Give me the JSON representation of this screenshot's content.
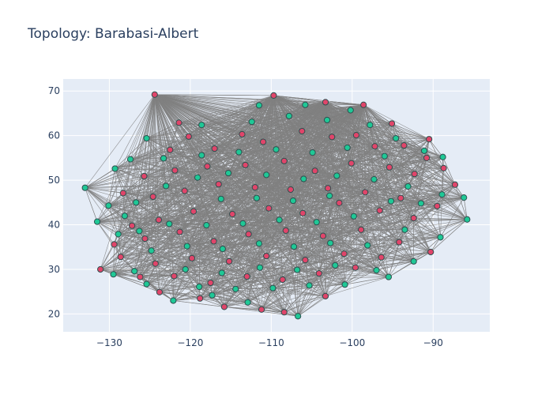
{
  "chart_data": {
    "type": "scatter",
    "title": "Topology: Barabasi-Albert",
    "xlabel": "",
    "ylabel": "",
    "xlim": [
      -135.7,
      -83.0
    ],
    "ylim": [
      16.0,
      72.7
    ],
    "xticks": [
      -130,
      -120,
      -110,
      -100,
      -90
    ],
    "yticks": [
      20,
      30,
      40,
      50,
      60,
      70
    ],
    "grid": true,
    "legend": "none",
    "colors": {
      "plot_background": "#e5ecf6",
      "grid": "#ffffff",
      "edges": "#808080",
      "node_red": "#e0456a",
      "node_green": "#1fc896",
      "node_outline": "#2f4f4f",
      "tick_text": "#2a3f5f"
    },
    "series": [
      {
        "color": "#e0456a",
        "points": [
          [
            -124.4,
            69.2
          ],
          [
            -109.7,
            69.0
          ],
          [
            -103.3,
            67.5
          ],
          [
            -98.6,
            66.9
          ],
          [
            -131.1,
            30.0
          ],
          [
            -126.2,
            28.3
          ],
          [
            -123.8,
            24.9
          ],
          [
            -118.8,
            23.5
          ],
          [
            -115.8,
            21.6
          ],
          [
            -111.2,
            21.0
          ],
          [
            -108.4,
            20.4
          ],
          [
            -103.3,
            24.0
          ],
          [
            -87.3,
            49.0
          ],
          [
            -88.7,
            52.7
          ],
          [
            -90.5,
            59.2
          ],
          [
            -95.1,
            62.7
          ],
          [
            -121.4,
            62.9
          ],
          [
            -120.2,
            59.8
          ],
          [
            -122.5,
            56.8
          ],
          [
            -117.0,
            57.1
          ],
          [
            -113.6,
            60.3
          ],
          [
            -111.0,
            58.6
          ],
          [
            -106.2,
            61.0
          ],
          [
            -102.5,
            59.7
          ],
          [
            -99.5,
            60.1
          ],
          [
            -97.2,
            57.6
          ],
          [
            -93.6,
            57.8
          ],
          [
            -90.8,
            55.0
          ],
          [
            -92.3,
            51.4
          ],
          [
            -95.4,
            52.9
          ],
          [
            -100.1,
            53.8
          ],
          [
            -104.6,
            52.1
          ],
          [
            -108.4,
            54.3
          ],
          [
            -113.2,
            53.4
          ],
          [
            -117.9,
            53.1
          ],
          [
            -121.9,
            52.2
          ],
          [
            -125.7,
            50.9
          ],
          [
            -128.3,
            47.1
          ],
          [
            -124.6,
            46.3
          ],
          [
            -120.7,
            47.6
          ],
          [
            -116.5,
            49.1
          ],
          [
            -112.0,
            48.4
          ],
          [
            -107.6,
            47.9
          ],
          [
            -103.0,
            48.2
          ],
          [
            -98.4,
            47.3
          ],
          [
            -94.0,
            46.0
          ],
          [
            -89.5,
            44.2
          ],
          [
            -92.4,
            41.5
          ],
          [
            -96.6,
            43.2
          ],
          [
            -101.6,
            44.9
          ],
          [
            -106.1,
            42.6
          ],
          [
            -110.3,
            43.7
          ],
          [
            -114.8,
            42.4
          ],
          [
            -119.6,
            43.0
          ],
          [
            -123.9,
            41.1
          ],
          [
            -127.2,
            39.8
          ],
          [
            -129.4,
            35.6
          ],
          [
            -125.6,
            36.9
          ],
          [
            -121.3,
            38.4
          ],
          [
            -117.1,
            36.3
          ],
          [
            -112.8,
            37.9
          ],
          [
            -108.2,
            38.7
          ],
          [
            -103.6,
            37.5
          ],
          [
            -98.9,
            38.9
          ],
          [
            -94.2,
            36.1
          ],
          [
            -90.3,
            33.9
          ],
          [
            -96.4,
            32.7
          ],
          [
            -101.0,
            33.5
          ],
          [
            -105.8,
            32.1
          ],
          [
            -110.6,
            33.0
          ],
          [
            -115.2,
            31.8
          ],
          [
            -119.8,
            32.5
          ],
          [
            -124.3,
            31.3
          ],
          [
            -128.6,
            32.8
          ],
          [
            -122.0,
            28.5
          ],
          [
            -117.5,
            27.0
          ],
          [
            -113.0,
            28.4
          ],
          [
            -108.6,
            27.7
          ],
          [
            -104.1,
            29.1
          ],
          [
            -99.6,
            30.4
          ]
        ]
      },
      {
        "color": "#1fc896",
        "points": [
          [
            -133.0,
            48.3
          ],
          [
            -131.5,
            40.7
          ],
          [
            -129.5,
            28.9
          ],
          [
            -125.4,
            26.7
          ],
          [
            -122.1,
            23.0
          ],
          [
            -117.3,
            24.2
          ],
          [
            -112.9,
            22.6
          ],
          [
            -106.7,
            19.5
          ],
          [
            -100.9,
            26.6
          ],
          [
            -95.5,
            28.3
          ],
          [
            -92.4,
            31.8
          ],
          [
            -85.8,
            41.2
          ],
          [
            -86.2,
            46.1
          ],
          [
            -88.8,
            55.2
          ],
          [
            -91.1,
            56.6
          ],
          [
            -94.6,
            59.4
          ],
          [
            -105.8,
            66.9
          ],
          [
            -100.2,
            65.7
          ],
          [
            -111.5,
            66.8
          ],
          [
            -118.6,
            62.4
          ],
          [
            -125.4,
            59.4
          ],
          [
            -129.3,
            52.6
          ],
          [
            -130.1,
            44.3
          ],
          [
            -128.1,
            42.0
          ],
          [
            -126.7,
            45.0
          ],
          [
            -123.0,
            48.7
          ],
          [
            -119.1,
            50.6
          ],
          [
            -115.3,
            51.6
          ],
          [
            -110.6,
            51.2
          ],
          [
            -106.0,
            50.3
          ],
          [
            -101.9,
            51.0
          ],
          [
            -97.3,
            50.2
          ],
          [
            -93.1,
            48.6
          ],
          [
            -88.9,
            46.8
          ],
          [
            -91.5,
            44.8
          ],
          [
            -95.2,
            45.3
          ],
          [
            -99.8,
            41.9
          ],
          [
            -104.4,
            40.6
          ],
          [
            -109.0,
            41.1
          ],
          [
            -113.5,
            40.3
          ],
          [
            -118.0,
            39.9
          ],
          [
            -122.6,
            40.2
          ],
          [
            -126.3,
            38.6
          ],
          [
            -128.9,
            37.9
          ],
          [
            -124.8,
            34.2
          ],
          [
            -120.4,
            35.2
          ],
          [
            -116.0,
            34.6
          ],
          [
            -111.5,
            35.8
          ],
          [
            -107.2,
            35.1
          ],
          [
            -102.7,
            35.9
          ],
          [
            -98.1,
            35.4
          ],
          [
            -93.5,
            38.9
          ],
          [
            -89.1,
            37.2
          ],
          [
            -97.0,
            29.8
          ],
          [
            -102.1,
            30.9
          ],
          [
            -106.8,
            29.9
          ],
          [
            -111.4,
            30.4
          ],
          [
            -116.1,
            29.2
          ],
          [
            -120.6,
            30.0
          ],
          [
            -126.9,
            29.6
          ],
          [
            -118.9,
            26.1
          ],
          [
            -114.4,
            25.6
          ],
          [
            -109.8,
            25.8
          ],
          [
            -105.3,
            26.4
          ],
          [
            -100.6,
            57.3
          ],
          [
            -96.0,
            55.4
          ],
          [
            -104.9,
            56.2
          ],
          [
            -109.4,
            56.9
          ],
          [
            -114.0,
            56.3
          ],
          [
            -118.6,
            55.6
          ],
          [
            -123.3,
            54.9
          ],
          [
            -127.4,
            54.7
          ],
          [
            -112.4,
            63.1
          ],
          [
            -107.8,
            64.4
          ],
          [
            -103.1,
            63.5
          ],
          [
            -97.8,
            62.4
          ],
          [
            -116.2,
            45.8
          ],
          [
            -111.8,
            46.0
          ],
          [
            -107.3,
            45.4
          ],
          [
            -102.8,
            46.5
          ]
        ]
      }
    ]
  }
}
